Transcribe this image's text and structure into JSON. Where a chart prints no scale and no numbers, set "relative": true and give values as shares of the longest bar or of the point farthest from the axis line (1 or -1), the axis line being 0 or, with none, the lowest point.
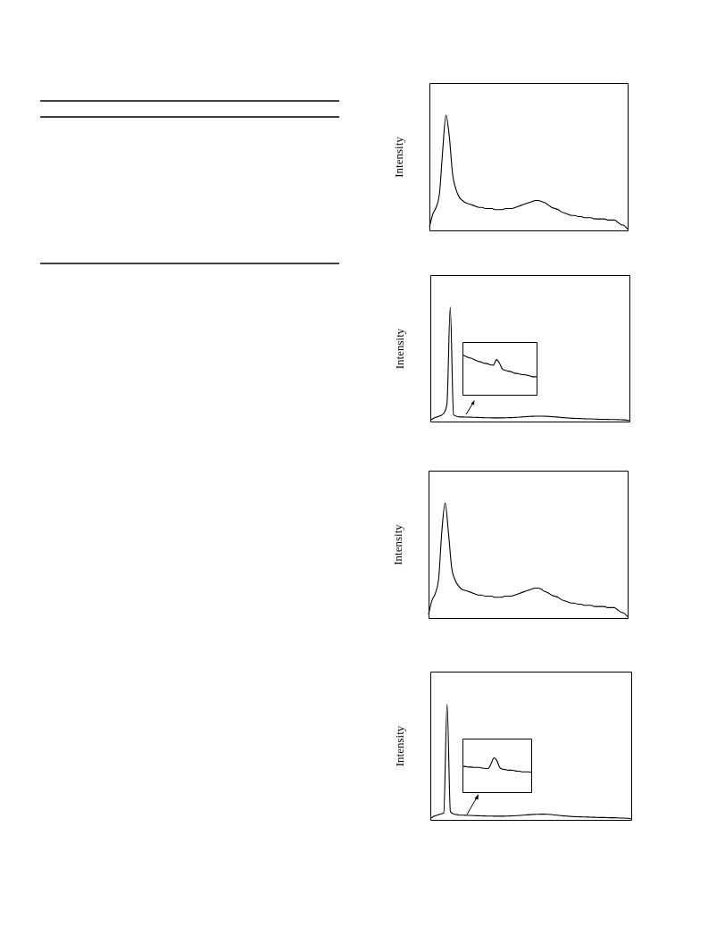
{
  "chart_data": [
    {
      "type": "line",
      "ylabel": "Intensity",
      "relative": true,
      "categories": [
        null,
        null,
        null,
        null,
        null,
        null,
        null,
        null,
        null,
        null,
        null,
        null,
        null,
        null,
        null,
        null,
        null,
        null,
        null,
        null,
        null,
        null,
        null,
        null,
        null,
        null,
        null,
        null,
        null,
        null,
        null,
        null,
        null,
        null,
        null,
        null,
        null,
        null,
        null,
        null,
        null,
        null,
        null,
        null,
        null,
        null,
        null,
        null,
        null,
        null,
        null,
        null,
        null,
        null,
        null,
        null,
        null,
        null,
        null,
        null,
        null
      ],
      "series": [
        {
          "color": "#000000",
          "values": [
            0.03,
            0.14,
            0.2,
            0.31,
            0.69,
            1,
            0.82,
            0.49,
            0.36,
            0.29,
            0.26,
            0.24,
            0.23,
            0.22,
            0.21,
            0.2,
            0.2,
            0.19,
            0.19,
            0.19,
            0.18,
            0.18,
            0.18,
            0.19,
            0.19,
            0.19,
            0.2,
            0.21,
            0.22,
            0.23,
            0.24,
            0.25,
            0.26,
            0.26,
            0.25,
            0.24,
            0.22,
            0.2,
            0.19,
            0.18,
            0.16,
            0.15,
            0.14,
            0.13,
            0.13,
            0.12,
            0.12,
            0.11,
            0.11,
            0.11,
            0.1,
            0.1,
            0.1,
            0.1,
            0.09,
            0.09,
            0.09,
            0.07,
            0.05,
            0.04,
            0.01
          ]
        }
      ]
    },
    {
      "type": "line",
      "ylabel": "Intensity",
      "relative": true,
      "categories": [
        null,
        null,
        null,
        null,
        null,
        null,
        null,
        null,
        null,
        null,
        null,
        null,
        null,
        null,
        null,
        null,
        null,
        null,
        null,
        null,
        null,
        null,
        null,
        null,
        null,
        null,
        null,
        null,
        null,
        null,
        null,
        null,
        null,
        null,
        null,
        null,
        null,
        null,
        null,
        null,
        null,
        null,
        null,
        null,
        null,
        null,
        null,
        null,
        null,
        null,
        null,
        null,
        null,
        null,
        null,
        null,
        null,
        null,
        null,
        null,
        null
      ],
      "series": [
        {
          "color": "#000000",
          "values": [
            0.01,
            0.03,
            0.04,
            0.05,
            0.07,
            0.15,
            1,
            0.06,
            0.045,
            0.04,
            0.04,
            0.039,
            0.038,
            0.037,
            0.036,
            0.035,
            0.034,
            0.033,
            0.033,
            0.032,
            0.032,
            0.032,
            0.032,
            0.033,
            0.034,
            0.035,
            0.037,
            0.039,
            0.041,
            0.043,
            0.045,
            0.046,
            0.047,
            0.047,
            0.047,
            0.046,
            0.044,
            0.042,
            0.04,
            0.037,
            0.034,
            0.032,
            0.03,
            0.028,
            0.027,
            0.026,
            0.025,
            0.024,
            0.023,
            0.022,
            0.021,
            0.02,
            0.02,
            0.019,
            0.018,
            0.018,
            0.017,
            0.016,
            0.015,
            0.013,
            0.01
          ]
        }
      ]
    },
    {
      "type": "line",
      "relative": true,
      "categories": [
        null,
        null,
        null,
        null,
        null,
        null,
        null,
        null,
        null,
        null,
        null,
        null,
        null,
        null,
        null,
        null,
        null,
        null,
        null,
        null,
        null,
        null,
        null,
        null,
        null
      ],
      "series": [
        {
          "color": "#000000",
          "values": [
            1,
            0.96,
            0.93,
            0.91,
            0.87,
            0.84,
            0.82,
            0.79,
            0.78,
            0.75,
            0.74,
            0.88,
            0.79,
            0.64,
            0.61,
            0.59,
            0.57,
            0.54,
            0.53,
            0.51,
            0.5,
            0.49,
            0.47,
            0.45,
            0.45
          ]
        }
      ]
    },
    {
      "type": "line",
      "ylabel": "Intensity",
      "relative": true,
      "categories": [
        null,
        null,
        null,
        null,
        null,
        null,
        null,
        null,
        null,
        null,
        null,
        null,
        null,
        null,
        null,
        null,
        null,
        null,
        null,
        null,
        null,
        null,
        null,
        null,
        null,
        null,
        null,
        null,
        null,
        null,
        null,
        null,
        null,
        null,
        null,
        null,
        null,
        null,
        null,
        null,
        null,
        null,
        null,
        null,
        null,
        null,
        null,
        null,
        null,
        null,
        null,
        null,
        null,
        null,
        null,
        null,
        null,
        null,
        null,
        null,
        null
      ],
      "series": [
        {
          "color": "#000000",
          "values": [
            0.03,
            0.15,
            0.21,
            0.33,
            0.75,
            1,
            0.74,
            0.43,
            0.33,
            0.28,
            0.25,
            0.24,
            0.23,
            0.22,
            0.21,
            0.2,
            0.2,
            0.19,
            0.19,
            0.19,
            0.18,
            0.18,
            0.18,
            0.19,
            0.19,
            0.19,
            0.2,
            0.21,
            0.22,
            0.23,
            0.24,
            0.25,
            0.26,
            0.26,
            0.25,
            0.23,
            0.22,
            0.2,
            0.19,
            0.18,
            0.16,
            0.15,
            0.14,
            0.13,
            0.13,
            0.12,
            0.12,
            0.11,
            0.11,
            0.11,
            0.1,
            0.1,
            0.1,
            0.1,
            0.09,
            0.09,
            0.09,
            0.07,
            0.05,
            0.04,
            0.01
          ]
        }
      ]
    },
    {
      "type": "line",
      "ylabel": "Intensity",
      "relative": true,
      "categories": [
        null,
        null,
        null,
        null,
        null,
        null,
        null,
        null,
        null,
        null,
        null,
        null,
        null,
        null,
        null,
        null,
        null,
        null,
        null,
        null,
        null,
        null,
        null,
        null,
        null,
        null,
        null,
        null,
        null,
        null,
        null,
        null,
        null,
        null,
        null,
        null,
        null,
        null,
        null,
        null,
        null,
        null,
        null,
        null,
        null,
        null,
        null,
        null,
        null,
        null,
        null,
        null,
        null,
        null,
        null,
        null,
        null,
        null,
        null,
        null,
        null
      ],
      "series": [
        {
          "color": "#000000",
          "values": [
            0.01,
            0.03,
            0.04,
            0.05,
            0.06,
            1,
            0.07,
            0.05,
            0.045,
            0.04,
            0.04,
            0.039,
            0.038,
            0.037,
            0.036,
            0.035,
            0.034,
            0.033,
            0.033,
            0.032,
            0.032,
            0.032,
            0.032,
            0.033,
            0.034,
            0.035,
            0.037,
            0.039,
            0.041,
            0.043,
            0.045,
            0.047,
            0.048,
            0.049,
            0.049,
            0.048,
            0.046,
            0.043,
            0.04,
            0.037,
            0.034,
            0.032,
            0.03,
            0.028,
            0.027,
            0.026,
            0.025,
            0.024,
            0.023,
            0.022,
            0.021,
            0.02,
            0.02,
            0.019,
            0.018,
            0.018,
            0.017,
            0.016,
            0.015,
            0.013,
            0.01
          ]
        }
      ]
    },
    {
      "type": "line",
      "relative": true,
      "categories": [
        null,
        null,
        null,
        null,
        null,
        null,
        null,
        null,
        null,
        null,
        null,
        null,
        null,
        null,
        null,
        null,
        null,
        null,
        null,
        null,
        null,
        null,
        null,
        null,
        null
      ],
      "series": [
        {
          "color": "#000000",
          "values": [
            0.75,
            0.75,
            0.73,
            0.73,
            0.72,
            0.72,
            0.72,
            0.7,
            0.69,
            0.69,
            0.83,
            1,
            0.92,
            0.72,
            0.67,
            0.66,
            0.64,
            0.64,
            0.63,
            0.61,
            0.61,
            0.59,
            0.59,
            0.59,
            0.58
          ]
        }
      ]
    }
  ]
}
